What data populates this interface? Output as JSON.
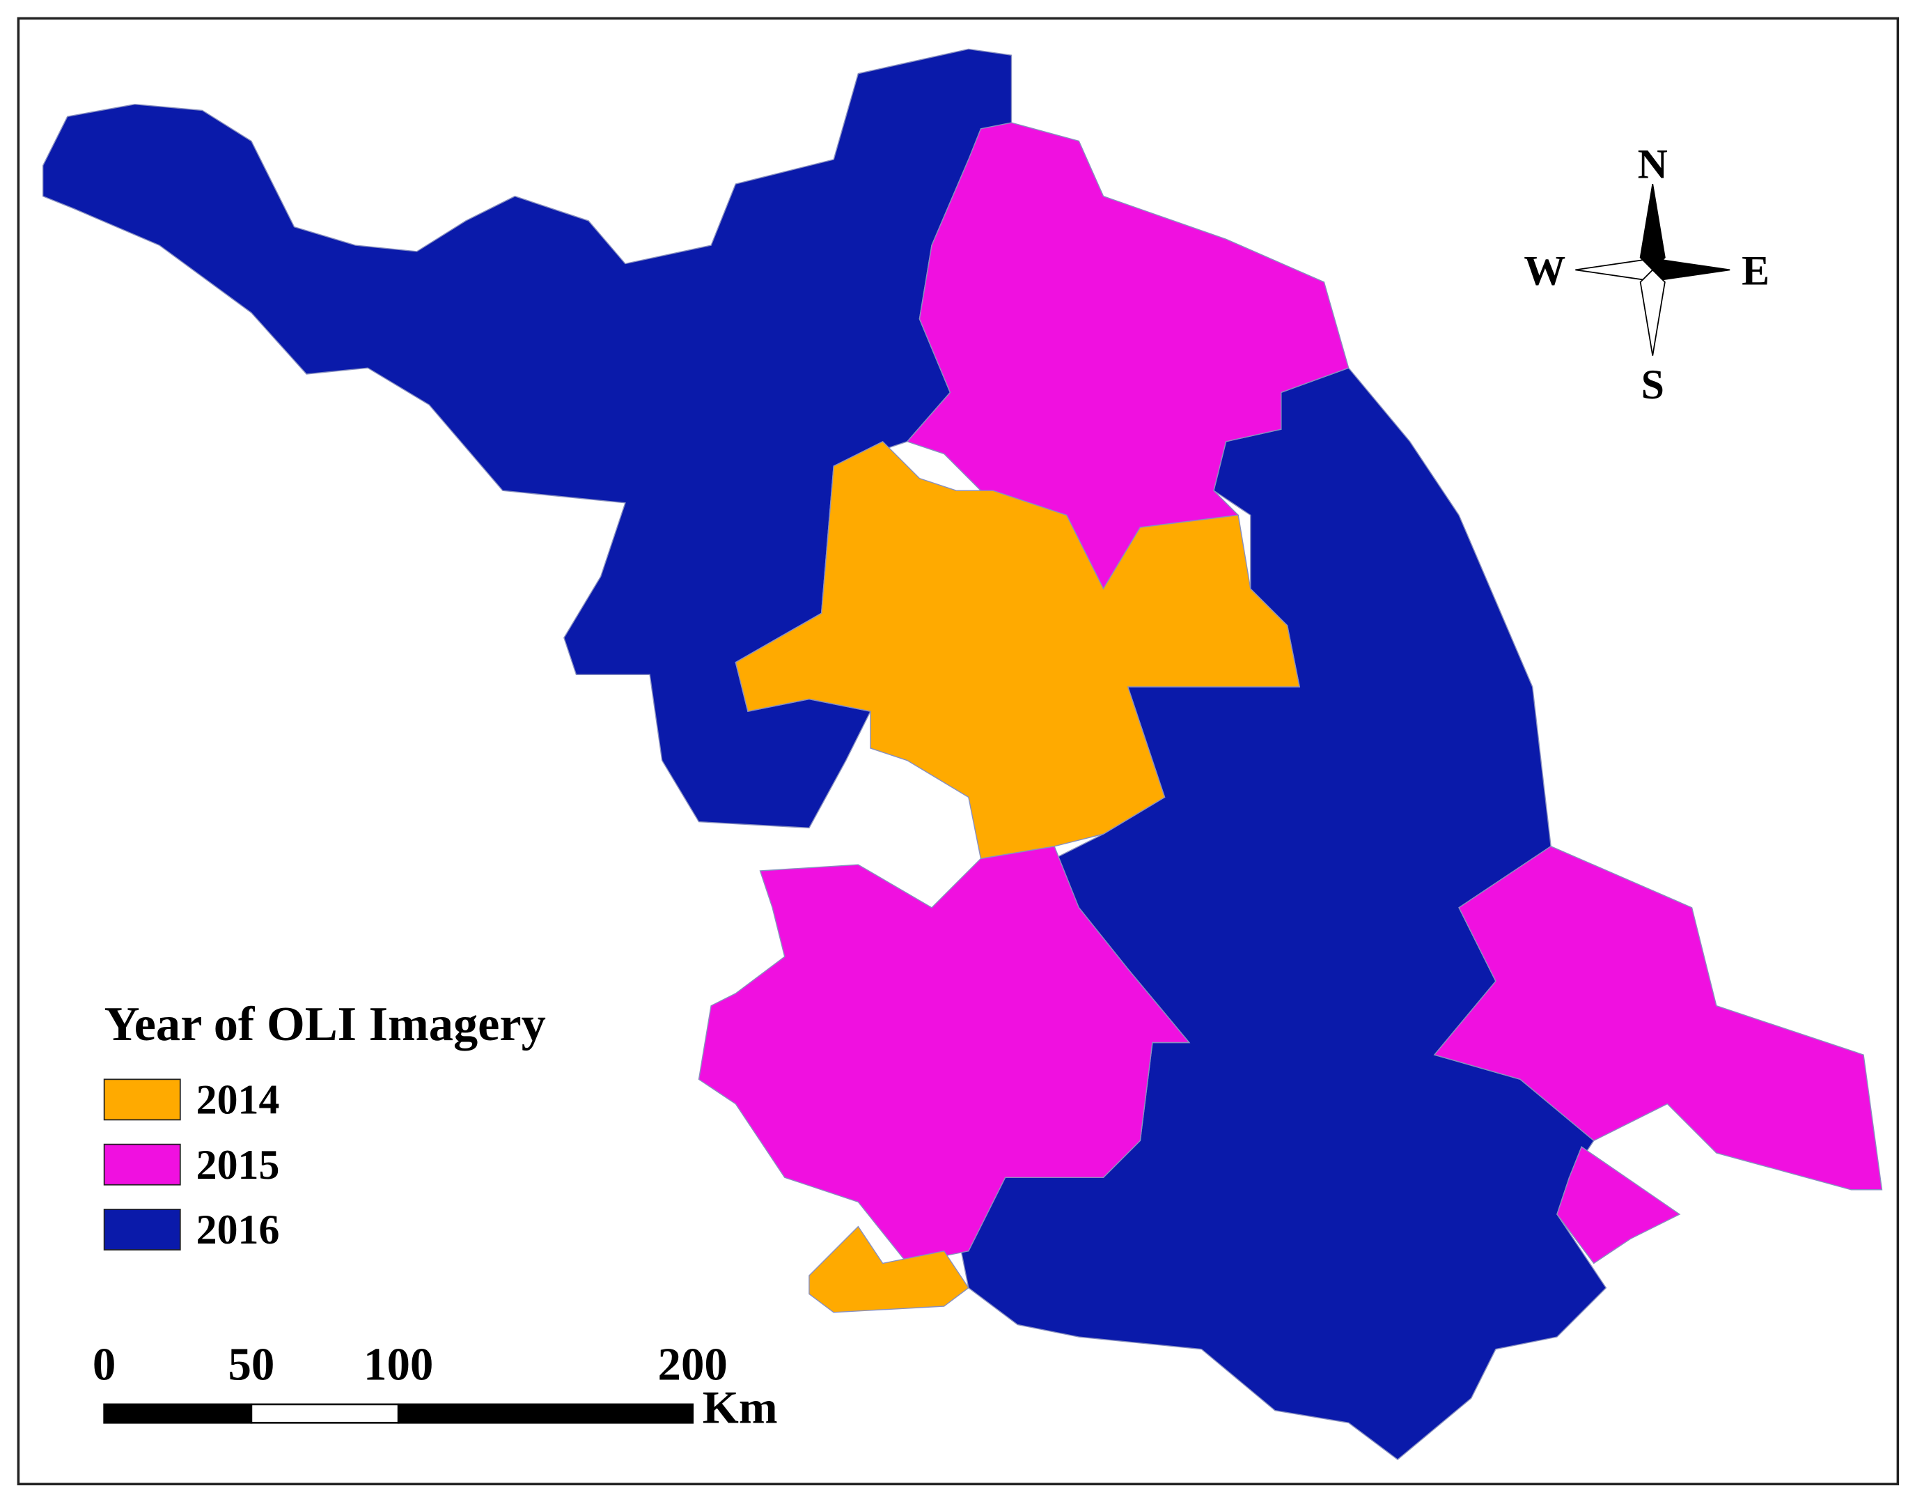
{
  "legend": {
    "title": "Year of OLI Imagery",
    "items": [
      {
        "label": "2014",
        "color": "#ffaa00"
      },
      {
        "label": "2015",
        "color": "#f010e0"
      },
      {
        "label": "2016",
        "color": "#0a1aaa"
      }
    ]
  },
  "compass": {
    "north": "N",
    "south": "S",
    "east": "E",
    "west": "W"
  },
  "scale_bar": {
    "ticks": [
      0,
      50,
      100,
      200
    ],
    "unit": "Km"
  }
}
